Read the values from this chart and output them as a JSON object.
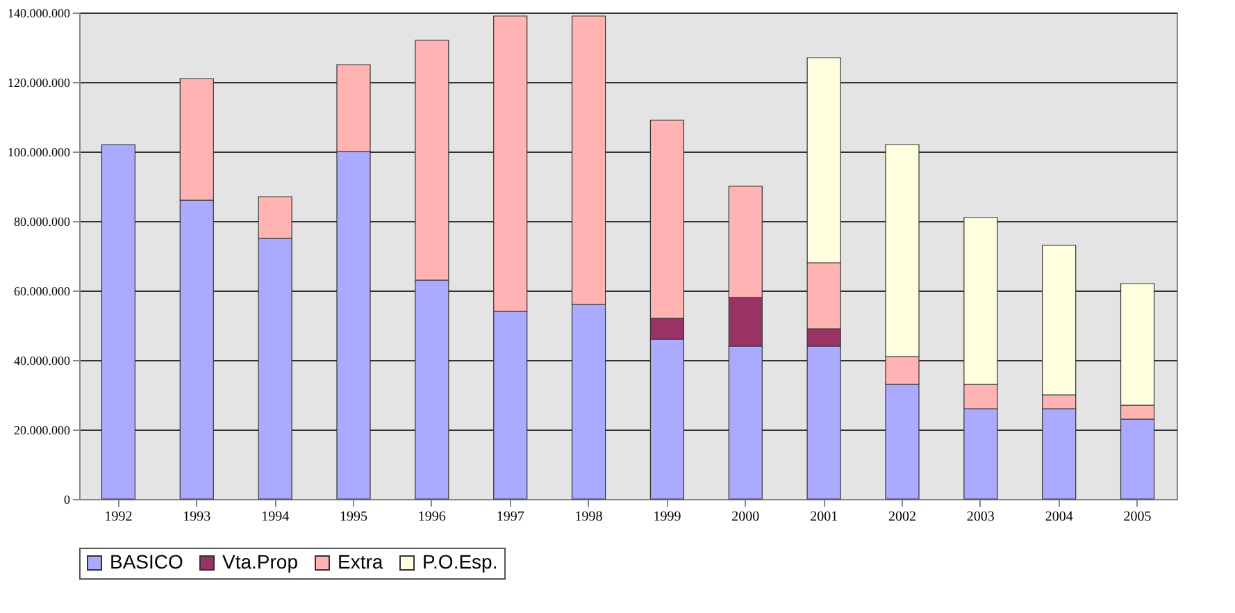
{
  "chart_data": {
    "type": "bar",
    "stacked": true,
    "categories": [
      "1992",
      "1993",
      "1994",
      "1995",
      "1996",
      "1997",
      "1998",
      "1999",
      "2000",
      "2001",
      "2002",
      "2003",
      "2004",
      "2005"
    ],
    "series": [
      {
        "name": "BASICO",
        "color": "#aaaaff",
        "values": [
          102000000,
          86000000,
          75000000,
          100000000,
          63000000,
          54000000,
          56000000,
          46000000,
          44000000,
          44000000,
          33000000,
          26000000,
          26000000,
          23000000
        ]
      },
      {
        "name": "Vta.Prop",
        "color": "#993366",
        "values": [
          null,
          null,
          null,
          null,
          null,
          null,
          null,
          6000000,
          14000000,
          5000000,
          null,
          null,
          null,
          null
        ]
      },
      {
        "name": "Extra",
        "color": "#ffb3b3",
        "values": [
          null,
          35000000,
          12000000,
          25000000,
          69000000,
          85000000,
          83000000,
          57000000,
          32000000,
          19000000,
          8000000,
          7000000,
          4000000,
          4000000
        ]
      },
      {
        "name": "P.O.Esp.",
        "color": "#ffffe0",
        "values": [
          null,
          null,
          null,
          null,
          null,
          null,
          null,
          null,
          null,
          59000000,
          61000000,
          48000000,
          43000000,
          35000000
        ]
      }
    ],
    "ylim": [
      0,
      140000000
    ],
    "yticks": [
      0,
      {
        "value": 20000000,
        "label": "20.000.000"
      },
      {
        "value": 40000000,
        "label": "40.000.000"
      },
      {
        "value": 60000000,
        "label": "60.000.000"
      },
      {
        "value": 80000000,
        "label": "80.000.000"
      },
      {
        "value": 100000000,
        "label": "100.000.000"
      },
      {
        "value": 120000000,
        "label": "120.000.000"
      },
      {
        "value": 140000000,
        "label": "140.000.000"
      }
    ],
    "grid": "y",
    "legend": "bottom"
  }
}
